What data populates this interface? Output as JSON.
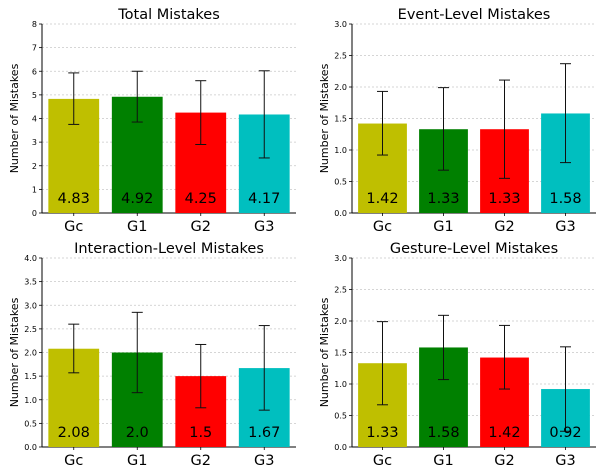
{
  "chart_data": [
    {
      "type": "bar",
      "title": "Total Mistakes",
      "ylabel": "Number of Mistakes",
      "categories": [
        "Gc",
        "G1",
        "G2",
        "G3"
      ],
      "values": [
        4.83,
        4.92,
        4.25,
        4.17
      ],
      "value_labels": [
        "4.83",
        "4.92",
        "4.25",
        "4.17"
      ],
      "error_low": [
        3.75,
        3.85,
        2.9,
        2.33
      ],
      "error_high": [
        5.93,
        6.0,
        5.6,
        6.02
      ],
      "ylim": [
        0,
        8
      ],
      "yticks": [
        "0",
        "1",
        "2",
        "3",
        "4",
        "5",
        "6",
        "7",
        "8"
      ],
      "colors": [
        "#bfbf00",
        "#008000",
        "#ff0000",
        "#00bfbf"
      ],
      "grid": true
    },
    {
      "type": "bar",
      "title": "Event-Level Mistakes",
      "ylabel": "Number of Mistakes",
      "categories": [
        "Gc",
        "G1",
        "G2",
        "G3"
      ],
      "values": [
        1.42,
        1.33,
        1.33,
        1.58
      ],
      "value_labels": [
        "1.42",
        "1.33",
        "1.33",
        "1.58"
      ],
      "error_low": [
        0.92,
        0.68,
        0.55,
        0.8
      ],
      "error_high": [
        1.93,
        1.99,
        2.11,
        2.37
      ],
      "ylim": [
        0,
        3
      ],
      "yticks": [
        "0.0",
        "0.5",
        "1.0",
        "1.5",
        "2.0",
        "2.5",
        "3.0"
      ],
      "colors": [
        "#bfbf00",
        "#008000",
        "#ff0000",
        "#00bfbf"
      ],
      "grid": true
    },
    {
      "type": "bar",
      "title": "Interaction-Level Mistakes",
      "ylabel": "Number of Mistakes",
      "categories": [
        "Gc",
        "G1",
        "G2",
        "G3"
      ],
      "values": [
        2.08,
        2.0,
        1.5,
        1.67
      ],
      "value_labels": [
        "2.08",
        "2.0",
        "1.5",
        "1.67"
      ],
      "error_low": [
        1.57,
        1.15,
        0.83,
        0.78
      ],
      "error_high": [
        2.6,
        2.85,
        2.17,
        2.57
      ],
      "ylim": [
        0,
        4
      ],
      "yticks": [
        "0.0",
        "0.5",
        "1.0",
        "1.5",
        "2.0",
        "2.5",
        "3.0",
        "3.5",
        "4.0"
      ],
      "colors": [
        "#bfbf00",
        "#008000",
        "#ff0000",
        "#00bfbf"
      ],
      "grid": true
    },
    {
      "type": "bar",
      "title": "Gesture-Level Mistakes",
      "ylabel": "Number of Mistakes",
      "categories": [
        "Gc",
        "G1",
        "G2",
        "G3"
      ],
      "values": [
        1.33,
        1.58,
        1.42,
        0.92
      ],
      "value_labels": [
        "1.33",
        "1.58",
        "1.42",
        "0.92"
      ],
      "error_low": [
        0.67,
        1.07,
        0.92,
        0.25
      ],
      "error_high": [
        1.99,
        2.09,
        1.93,
        1.59
      ],
      "ylim": [
        0,
        3
      ],
      "yticks": [
        "0.0",
        "0.5",
        "1.0",
        "1.5",
        "2.0",
        "2.5",
        "3.0"
      ],
      "colors": [
        "#bfbf00",
        "#008000",
        "#ff0000",
        "#00bfbf"
      ],
      "grid": true
    }
  ]
}
